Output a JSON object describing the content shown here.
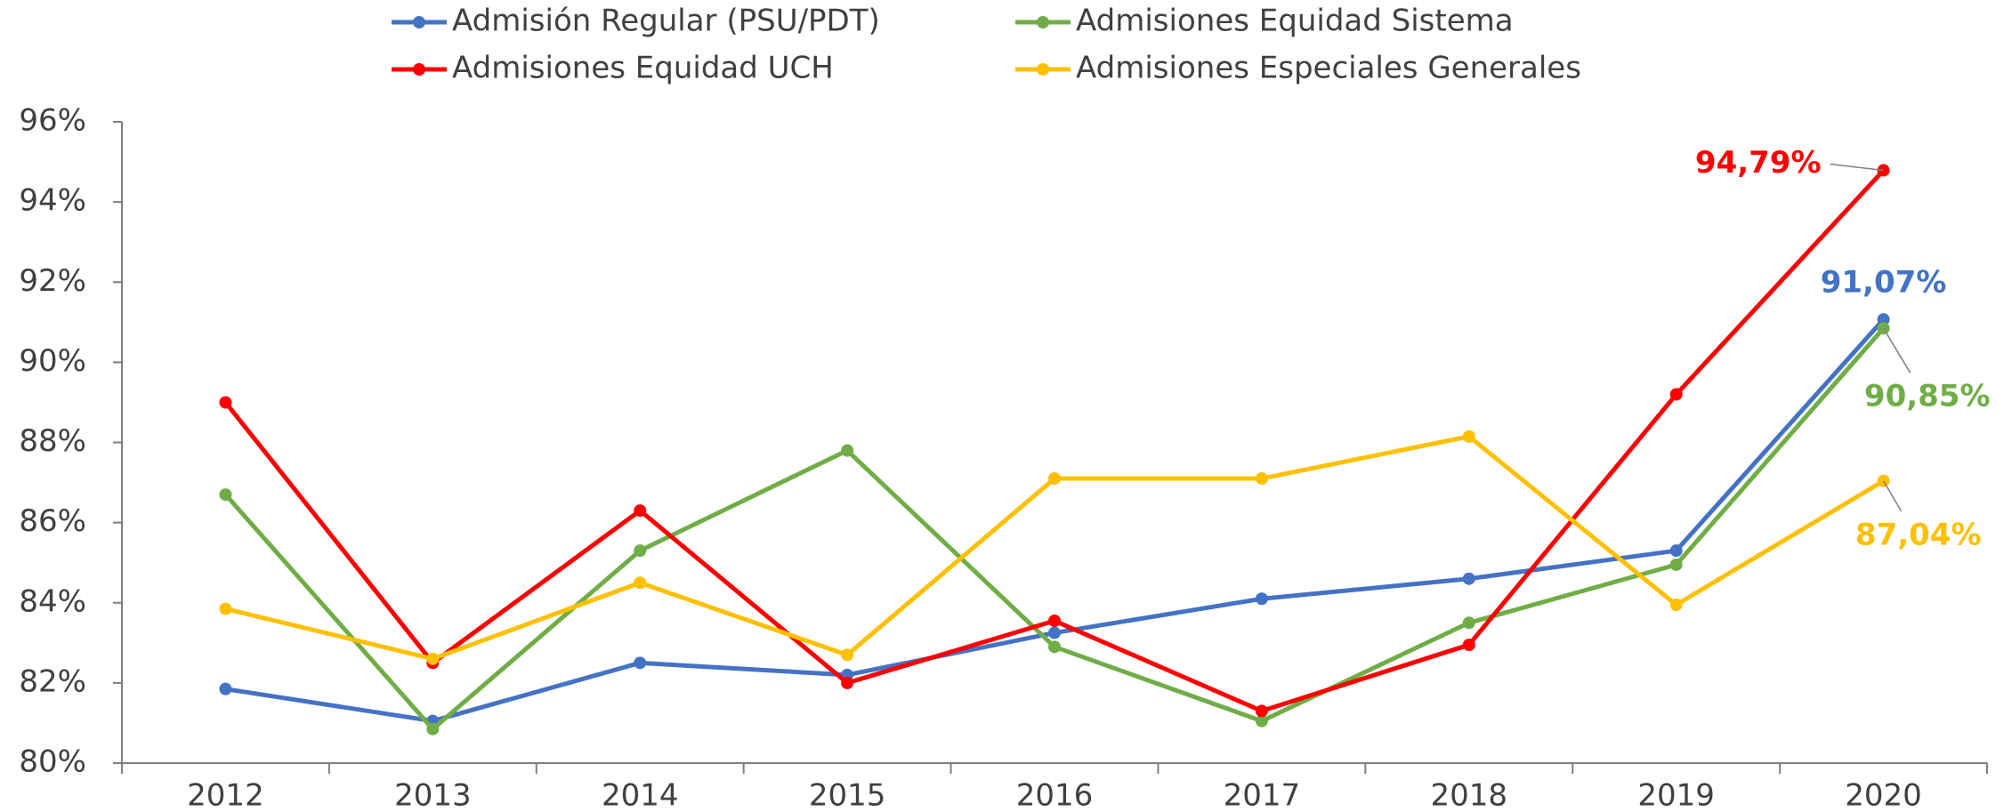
{
  "chart_data": {
    "type": "line",
    "categories": [
      "2012",
      "2013",
      "2014",
      "2015",
      "2016",
      "2017",
      "2018",
      "2019",
      "2020"
    ],
    "series": [
      {
        "name": "Admisión Regular (PSU/PDT)",
        "color": "#4472c4",
        "values": [
          81.85,
          81.05,
          82.5,
          82.2,
          83.25,
          84.1,
          84.6,
          85.3,
          91.07
        ],
        "value_labels": [
          null,
          null,
          null,
          null,
          null,
          null,
          null,
          null,
          "91,07%"
        ]
      },
      {
        "name": "Admisiones Equidad Sistema",
        "color": "#70ad47",
        "values": [
          86.7,
          80.85,
          85.3,
          87.8,
          82.9,
          81.05,
          83.5,
          84.95,
          90.85
        ],
        "value_labels": [
          null,
          null,
          null,
          null,
          null,
          null,
          null,
          null,
          "90,85%"
        ]
      },
      {
        "name": "Admisiones Equidad UCH",
        "color": "#ff0000",
        "values": [
          89.0,
          82.5,
          86.3,
          82.0,
          83.55,
          81.3,
          82.95,
          89.2,
          94.79
        ],
        "value_labels": [
          null,
          null,
          null,
          null,
          null,
          null,
          null,
          null,
          "94,79%"
        ]
      },
      {
        "name": "Admisiones Especiales Generales",
        "color": "#ffc000",
        "values": [
          83.85,
          82.6,
          84.5,
          82.7,
          87.1,
          87.1,
          88.15,
          83.95,
          87.04
        ],
        "value_labels": [
          null,
          null,
          null,
          null,
          null,
          null,
          null,
          null,
          "87,04%"
        ]
      }
    ],
    "ylim": [
      80,
      96
    ],
    "yticks": [
      {
        "value": 80,
        "label": "80%"
      },
      {
        "value": 82,
        "label": "82%"
      },
      {
        "value": 84,
        "label": "84%"
      },
      {
        "value": 86,
        "label": "86%"
      },
      {
        "value": 88,
        "label": "88%"
      },
      {
        "value": 90,
        "label": "90%"
      },
      {
        "value": 92,
        "label": "92%"
      },
      {
        "value": 94,
        "label": "94%"
      },
      {
        "value": 96,
        "label": "96%"
      }
    ],
    "grid": false,
    "legend": "top"
  }
}
